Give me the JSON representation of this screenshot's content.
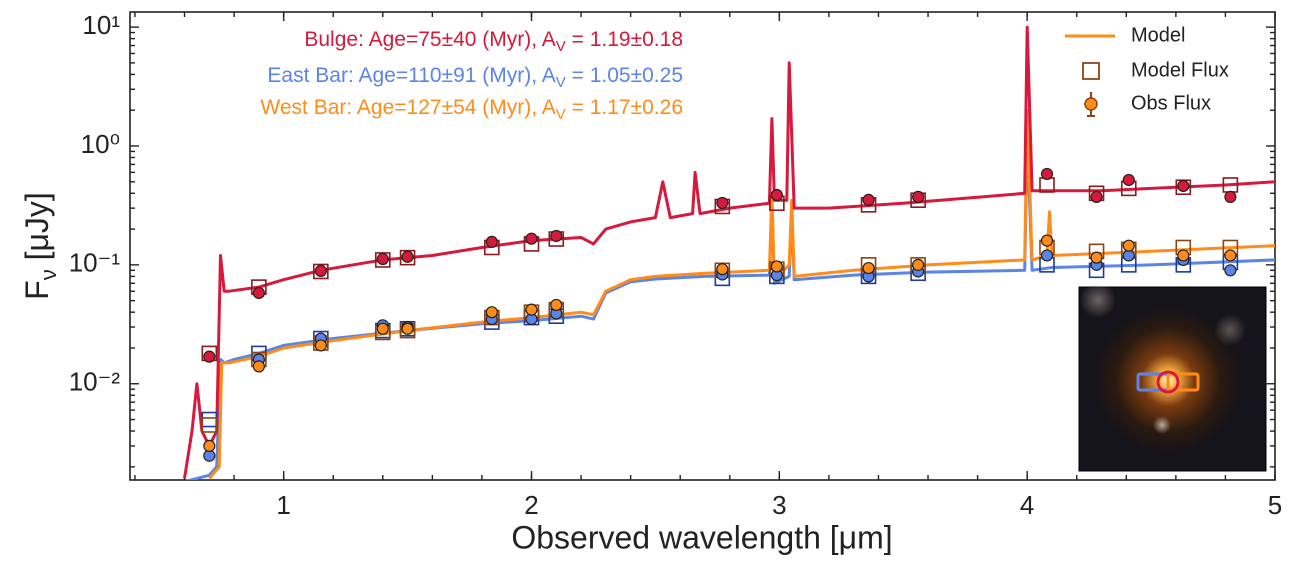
{
  "chart_data": {
    "type": "line",
    "xlabel": "Observed wavelength [μm]",
    "ylabel": {
      "text": "F",
      "sub": "ν",
      "after": " [μJy]"
    },
    "xlim": [
      0.38,
      5.0
    ],
    "ylim": [
      0.00155,
      13.4
    ],
    "log_y": true,
    "xticks": [
      1,
      2,
      3,
      4,
      5
    ],
    "yticks": [
      {
        "value": 10,
        "label": "10¹"
      },
      {
        "value": 1,
        "label": "10⁰"
      },
      {
        "value": 0.1,
        "label": "10⁻¹"
      },
      {
        "value": 0.01,
        "label": "10⁻²"
      }
    ],
    "x": [
      0.7,
      0.9,
      1.15,
      1.4,
      1.5,
      1.84,
      2.0,
      2.1,
      2.77,
      2.99,
      3.36,
      3.56,
      4.08,
      4.28,
      4.41,
      4.63,
      4.82
    ],
    "legend": [
      {
        "label": "Model",
        "color": "#ff8c1a"
      },
      {
        "label": "Model Flux",
        "color": "#8b4513"
      },
      {
        "label": "Obs Flux",
        "color": "#ff8c1a"
      }
    ],
    "series": [
      {
        "color": "#5b84e8",
        "annotation": {
          "text": "East Bar: Age=110±91 (Myr), A",
          "sub": "V",
          "after": " = 1.05±0.25"
        },
        "model_x": [
          0.6,
          0.65,
          0.7,
          0.73,
          0.745,
          0.76,
          0.8,
          0.9,
          1.0,
          1.2,
          1.5,
          1.8,
          2.0,
          2.2,
          2.25,
          2.3,
          2.4,
          2.5,
          2.7,
          2.96,
          2.97,
          2.98,
          3.04,
          3.05,
          3.06,
          3.3,
          3.6,
          3.99,
          4.0,
          4.02,
          4.1,
          4.5,
          5.0
        ],
        "model_y": [
          0.0015,
          0.0016,
          0.0017,
          0.002,
          0.016,
          0.015,
          0.016,
          0.018,
          0.021,
          0.024,
          0.028,
          0.032,
          0.034,
          0.037,
          0.035,
          0.058,
          0.072,
          0.076,
          0.08,
          0.082,
          0.3,
          0.07,
          0.08,
          0.28,
          0.075,
          0.082,
          0.087,
          0.09,
          1.2,
          0.09,
          0.095,
          0.1,
          0.11
        ],
        "values": [
          0.00248,
          0.016,
          0.024,
          0.031,
          0.03,
          0.035,
          0.035,
          0.039,
          0.083,
          0.082,
          0.08,
          0.088,
          0.12,
          0.1,
          0.12,
          0.11,
          0.09
        ],
        "model_flux": [
          0.005,
          0.018,
          0.024,
          0.028,
          0.029,
          0.033,
          0.036,
          0.037,
          0.077,
          0.08,
          0.08,
          0.085,
          0.1,
          0.09,
          0.1,
          0.1,
          0.105
        ]
      },
      {
        "color": "#ff8c1a",
        "annotation": {
          "text": "West Bar: Age=127±54 (Myr), A",
          "sub": "V",
          "after": " = 1.17±0.26"
        },
        "model_x": [
          0.7,
          0.74,
          0.75,
          0.78,
          0.9,
          1.0,
          1.2,
          1.5,
          1.8,
          2.0,
          2.2,
          2.25,
          2.3,
          2.4,
          2.5,
          2.7,
          2.96,
          2.97,
          2.98,
          3.04,
          3.05,
          3.06,
          3.3,
          3.6,
          3.99,
          4.0,
          4.02,
          4.08,
          4.09,
          4.1,
          4.5,
          5.0
        ],
        "model_y": [
          0.0016,
          0.002,
          0.015,
          0.015,
          0.017,
          0.02,
          0.023,
          0.028,
          0.033,
          0.036,
          0.04,
          0.038,
          0.06,
          0.075,
          0.08,
          0.085,
          0.09,
          0.4,
          0.075,
          0.1,
          0.35,
          0.08,
          0.09,
          0.1,
          0.11,
          2.0,
          0.11,
          0.12,
          0.28,
          0.12,
          0.13,
          0.145
        ],
        "values": [
          0.003,
          0.014,
          0.021,
          0.029,
          0.029,
          0.04,
          0.042,
          0.046,
          0.092,
          0.097,
          0.094,
          0.1,
          0.16,
          0.115,
          0.145,
          0.12,
          0.12
        ],
        "model_flux": [
          0.0045,
          0.016,
          0.022,
          0.027,
          0.028,
          0.036,
          0.04,
          0.042,
          0.09,
          0.092,
          0.1,
          0.1,
          0.14,
          0.13,
          0.135,
          0.14,
          0.14
        ]
      },
      {
        "color": "#d6193c",
        "annotation": {
          "text": "Bulge: Age=75±40 (Myr),   A",
          "sub": "V",
          "after": " = 1.19±0.18"
        },
        "model_x": [
          0.6,
          0.63,
          0.65,
          0.67,
          0.7,
          0.73,
          0.745,
          0.76,
          0.78,
          0.9,
          1.0,
          1.15,
          1.4,
          1.6,
          1.8,
          2.0,
          2.2,
          2.25,
          2.3,
          2.4,
          2.5,
          2.53,
          2.56,
          2.65,
          2.66,
          2.68,
          2.8,
          2.96,
          2.97,
          2.98,
          3.03,
          3.04,
          3.06,
          3.2,
          3.5,
          3.8,
          3.99,
          4.0,
          4.02,
          4.3,
          4.6,
          4.8,
          5.0
        ],
        "model_y": [
          0.0016,
          0.004,
          0.01,
          0.004,
          0.003,
          0.004,
          0.12,
          0.06,
          0.06,
          0.065,
          0.075,
          0.09,
          0.11,
          0.12,
          0.14,
          0.16,
          0.17,
          0.15,
          0.2,
          0.23,
          0.25,
          0.5,
          0.25,
          0.27,
          0.6,
          0.27,
          0.3,
          0.33,
          1.7,
          0.35,
          0.35,
          5.0,
          0.3,
          0.3,
          0.33,
          0.37,
          0.4,
          10.0,
          0.42,
          0.42,
          0.45,
          0.47,
          0.5
        ],
        "values": [
          0.0169,
          0.058,
          0.089,
          0.112,
          0.117,
          0.156,
          0.166,
          0.175,
          0.332,
          0.387,
          0.352,
          0.373,
          0.582,
          0.373,
          0.518,
          0.461,
          0.373
        ],
        "model_flux": [
          0.018,
          0.065,
          0.088,
          0.11,
          0.115,
          0.14,
          0.15,
          0.165,
          0.31,
          0.33,
          0.32,
          0.35,
          0.47,
          0.4,
          0.44,
          0.45,
          0.47
        ]
      }
    ]
  }
}
